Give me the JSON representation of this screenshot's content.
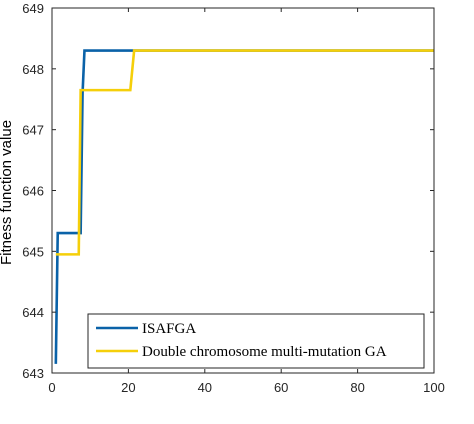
{
  "chart_data": {
    "type": "line",
    "title": "",
    "xlabel": "",
    "ylabel": "Fitness function value",
    "xlim": [
      0,
      100
    ],
    "ylim": [
      643,
      649
    ],
    "xticks": [
      0,
      20,
      40,
      60,
      80,
      100
    ],
    "yticks": [
      643,
      644,
      645,
      646,
      647,
      648,
      649
    ],
    "grid": false,
    "legend": "bottom-right",
    "series": [
      {
        "name": "ISAFGA",
        "color": "#0a62a8",
        "x": [
          1,
          1.5,
          2,
          7.5,
          8,
          8.5,
          20,
          100
        ],
        "y": [
          643.15,
          645.3,
          645.3,
          645.3,
          647.6,
          648.3,
          648.3,
          648.3
        ]
      },
      {
        "name": "Double chromosome multi-mutation GA",
        "color": "#f5cf0a",
        "x": [
          1,
          7,
          7.5,
          20.5,
          21.5,
          100
        ],
        "y": [
          644.95,
          644.95,
          647.65,
          647.65,
          648.3,
          648.3
        ]
      }
    ]
  }
}
